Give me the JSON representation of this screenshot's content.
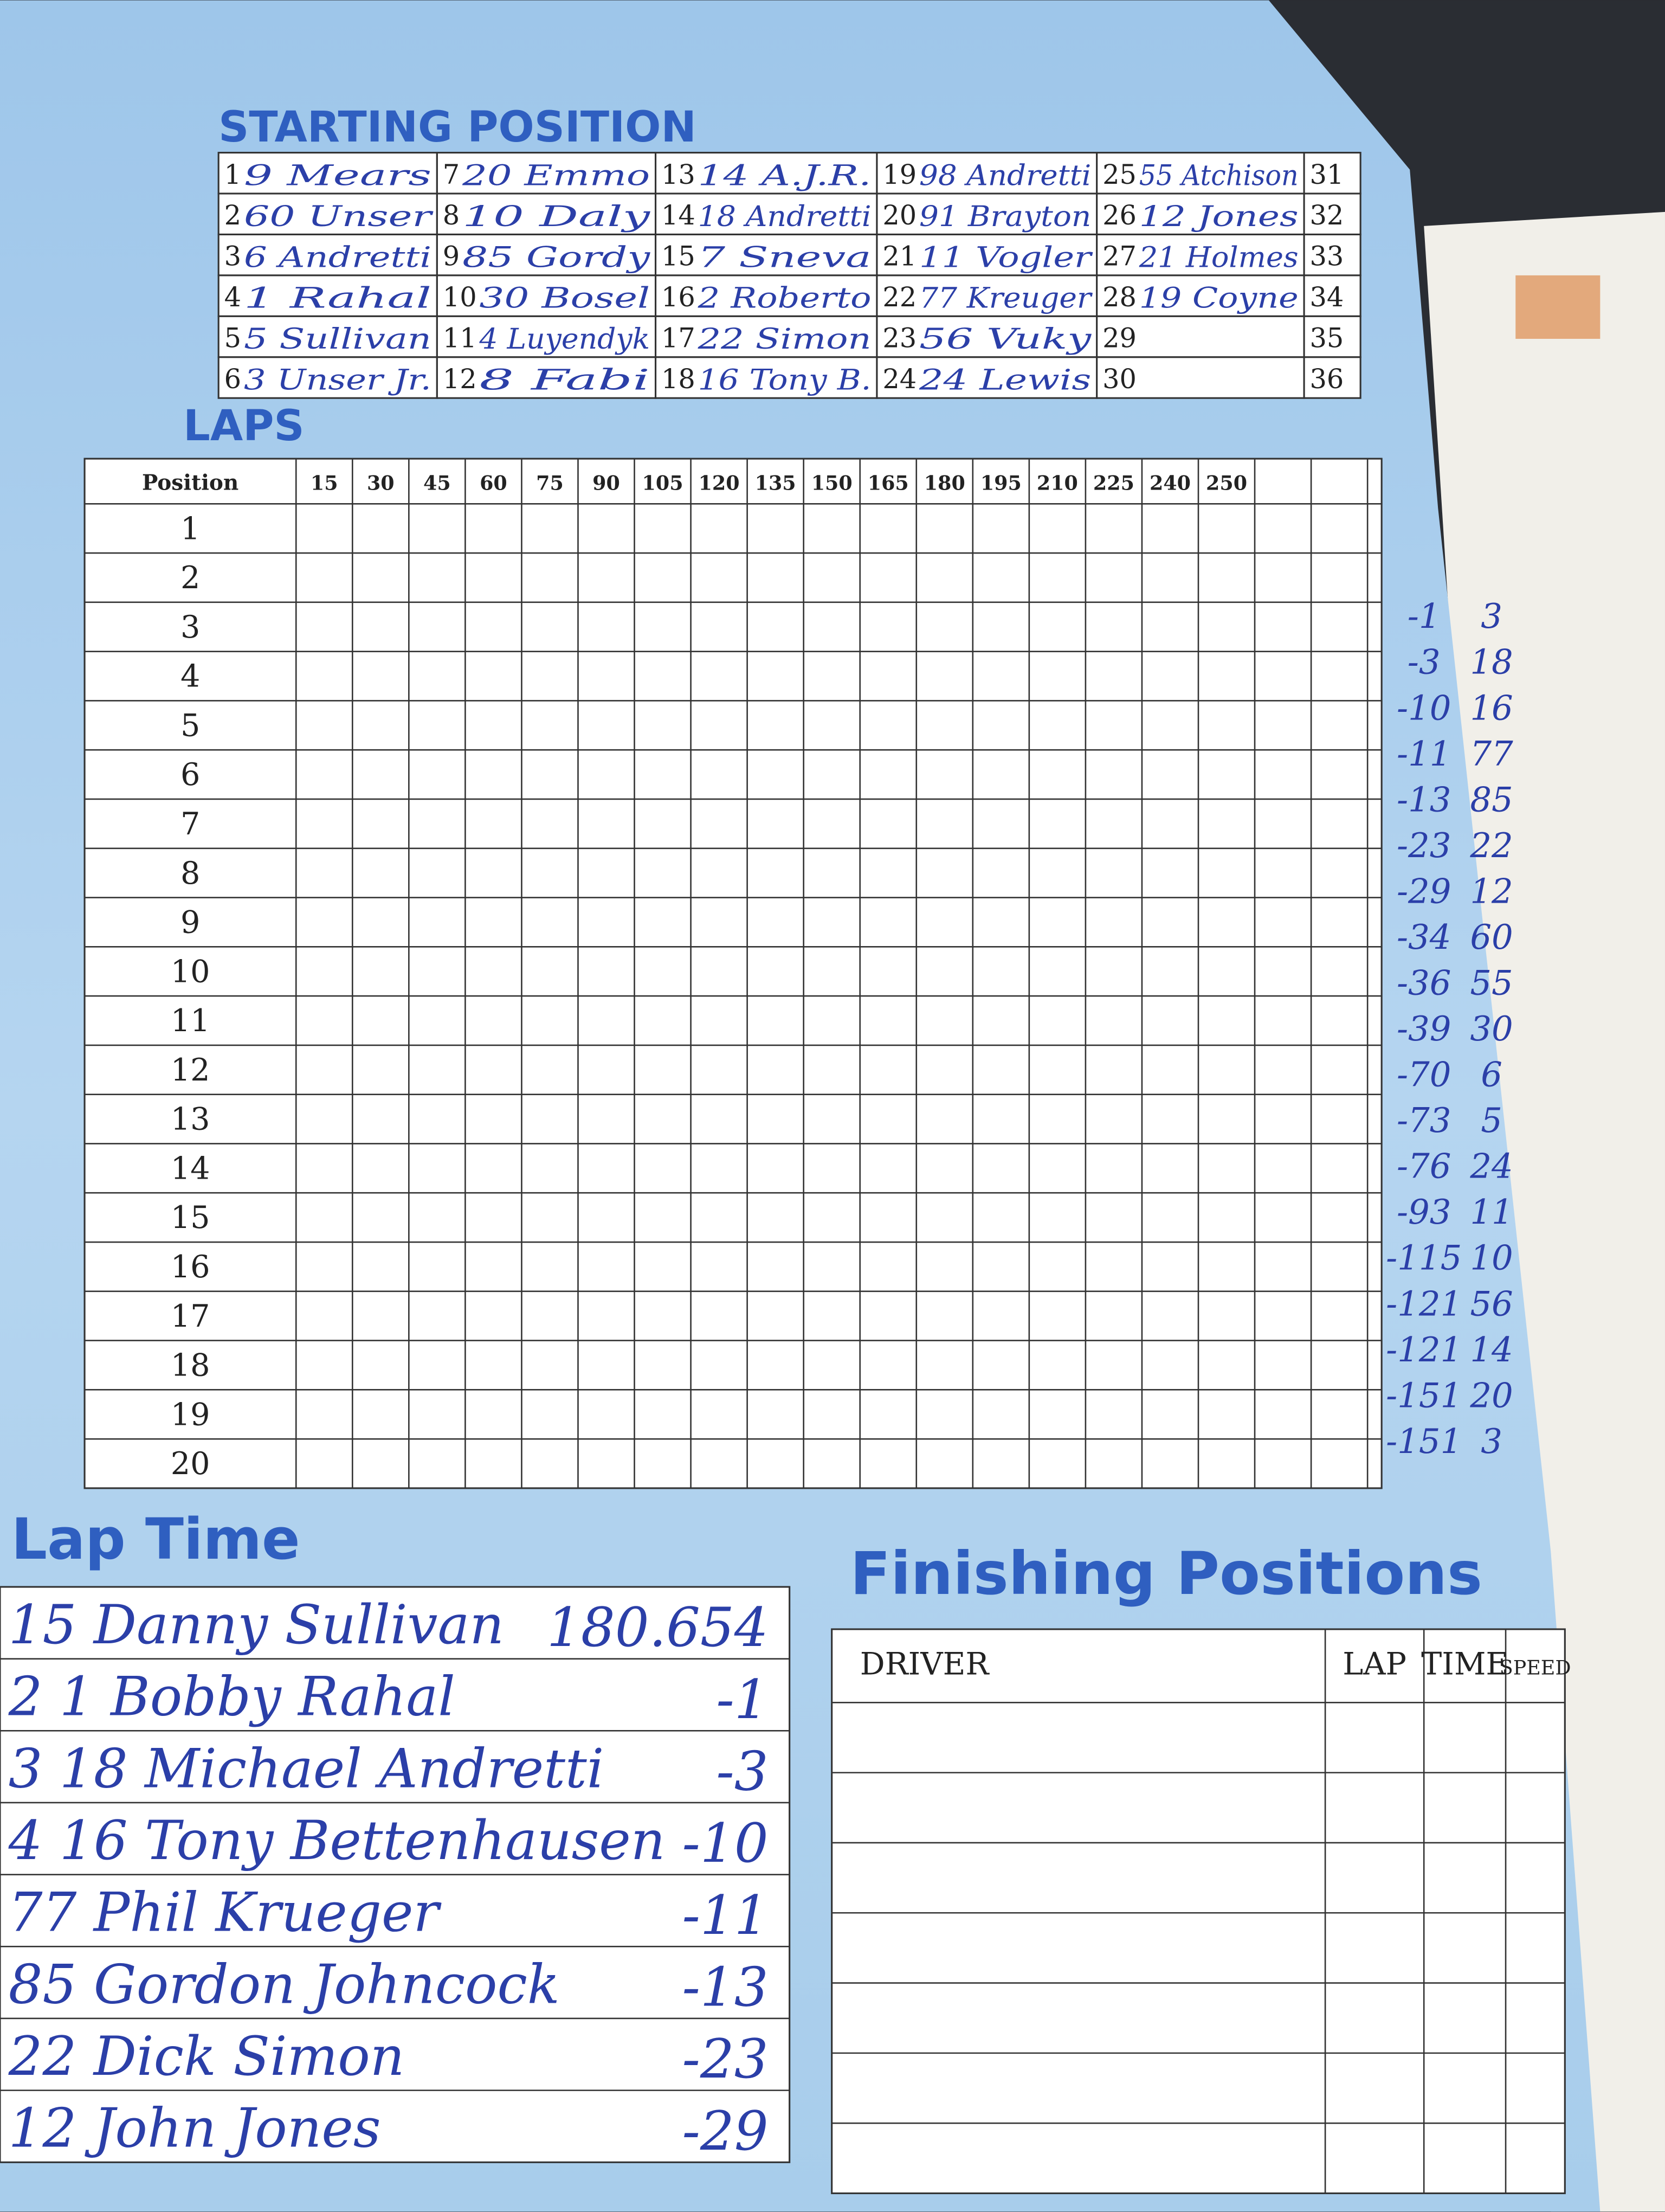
{
  "starting_position": {
    "title": "STARTING POSITION",
    "slots": [
      {
        "number": 1,
        "driver": "9 Mears"
      },
      {
        "number": 2,
        "driver": "60 Unser"
      },
      {
        "number": 3,
        "driver": "6 Andretti"
      },
      {
        "number": 4,
        "driver": "1 Rahal"
      },
      {
        "number": 5,
        "driver": "5 Sullivan"
      },
      {
        "number": 6,
        "driver": "3 Unser Jr."
      },
      {
        "number": 7,
        "driver": "20 Emmo"
      },
      {
        "number": 8,
        "driver": "10 Daly"
      },
      {
        "number": 9,
        "driver": "85 Gordy"
      },
      {
        "number": 10,
        "driver": "30 Bosel"
      },
      {
        "number": 11,
        "driver": "4 Luyendyk"
      },
      {
        "number": 12,
        "driver": "8 Fabi"
      },
      {
        "number": 13,
        "driver": "14 A.J.R."
      },
      {
        "number": 14,
        "driver": "18 Andretti"
      },
      {
        "number": 15,
        "driver": "7 Sneva"
      },
      {
        "number": 16,
        "driver": "2 Roberto"
      },
      {
        "number": 17,
        "driver": "22 Simon"
      },
      {
        "number": 18,
        "driver": "16 Tony B."
      },
      {
        "number": 19,
        "driver": "98 Andretti"
      },
      {
        "number": 20,
        "driver": "91 Brayton"
      },
      {
        "number": 21,
        "driver": "11 Vogler"
      },
      {
        "number": 22,
        "driver": "77 Kreuger"
      },
      {
        "number": 23,
        "driver": "56 Vuky"
      },
      {
        "number": 24,
        "driver": "24 Lewis"
      },
      {
        "number": 25,
        "driver": "55 Atchison"
      },
      {
        "number": 26,
        "driver": "12 Jones"
      },
      {
        "number": 27,
        "driver": "21 Holmes"
      },
      {
        "number": 28,
        "driver": "19 Coyne"
      },
      {
        "number": 29
      },
      {
        "number": 30
      },
      {
        "number": 31
      },
      {
        "number": 32
      },
      {
        "number": 33
      },
      {
        "number": 34
      },
      {
        "number": 35
      },
      {
        "number": 36
      }
    ]
  },
  "laps": {
    "title": "LAPS",
    "header": "Position",
    "laps": [
      15,
      30,
      45,
      60,
      75,
      90,
      105,
      120,
      135,
      150,
      165,
      180,
      195,
      210,
      225,
      240,
      250
    ],
    "positions": [
      1,
      2,
      3,
      4,
      5,
      6,
      7,
      8,
      9,
      10,
      11,
      12,
      13,
      14,
      15,
      16,
      17,
      18,
      19,
      20
    ],
    "margin_notes": [
      {
        "behind": "-1",
        "car": "3"
      },
      {
        "behind": "-3",
        "car": "18"
      },
      {
        "behind": "-10",
        "car": "16"
      },
      {
        "behind": "-11",
        "car": "77"
      },
      {
        "behind": "-13",
        "car": "85"
      },
      {
        "behind": "-23",
        "car": "22"
      },
      {
        "behind": "-29",
        "car": "12"
      },
      {
        "behind": "-34",
        "car": "60"
      },
      {
        "behind": "-36",
        "car": "55"
      },
      {
        "behind": "-39",
        "car": "30"
      },
      {
        "behind": "-70",
        "car": "6"
      },
      {
        "behind": "-73",
        "car": "5"
      },
      {
        "behind": "-76",
        "car": "24"
      },
      {
        "behind": "-93",
        "car": "11"
      },
      {
        "behind": "-115",
        "car": "10"
      },
      {
        "behind": "-121",
        "car": "56"
      },
      {
        "behind": "-121",
        "car": "14"
      },
      {
        "behind": "-151",
        "car": "20"
      },
      {
        "behind": "-151",
        "car": "3"
      }
    ]
  },
  "lap_time": {
    "title": "Lap Time",
    "rows": [
      {
        "entry": "15 Danny Sullivan",
        "gap": "180.654"
      },
      {
        "entry": "2 1 Bobby Rahal",
        "gap": "-1"
      },
      {
        "entry": "3 18 Michael Andretti",
        "gap": "-3"
      },
      {
        "entry": "4 16 Tony Bettenhausen",
        "gap": "-10"
      },
      {
        "entry": "77 Phil Krueger",
        "gap": "-11"
      },
      {
        "entry": "85 Gordon Johncock",
        "gap": "-13"
      },
      {
        "entry": "22 Dick Simon",
        "gap": "-23"
      },
      {
        "entry": "12 John Jones",
        "gap": "-29"
      }
    ]
  },
  "finishing_positions": {
    "title": "Finishing Positions",
    "columns": [
      "DRIVER",
      "LAP",
      "TIME",
      "SPEED"
    ]
  }
}
